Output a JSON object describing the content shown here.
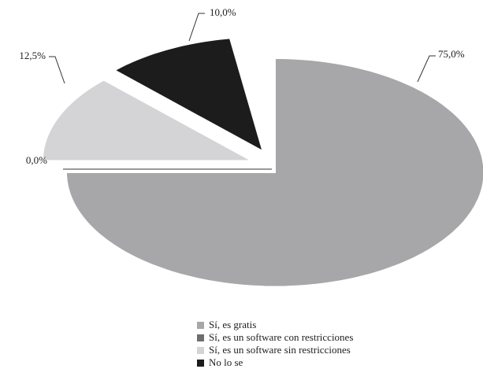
{
  "chart_data": {
    "type": "pie",
    "categories": [
      "Sí, es gratis",
      "Sí, es un software con restricciones",
      "Sí, es un software sin restricciones",
      "No lo se"
    ],
    "values": [
      75.0,
      0.0,
      12.5,
      10.0
    ],
    "value_labels": [
      "75,0%",
      "0,0%",
      "12,5%",
      "10,0%"
    ],
    "colors": [
      "#a7a7a9",
      "#6e6e70",
      "#d4d4d6",
      "#1c1c1c"
    ]
  }
}
